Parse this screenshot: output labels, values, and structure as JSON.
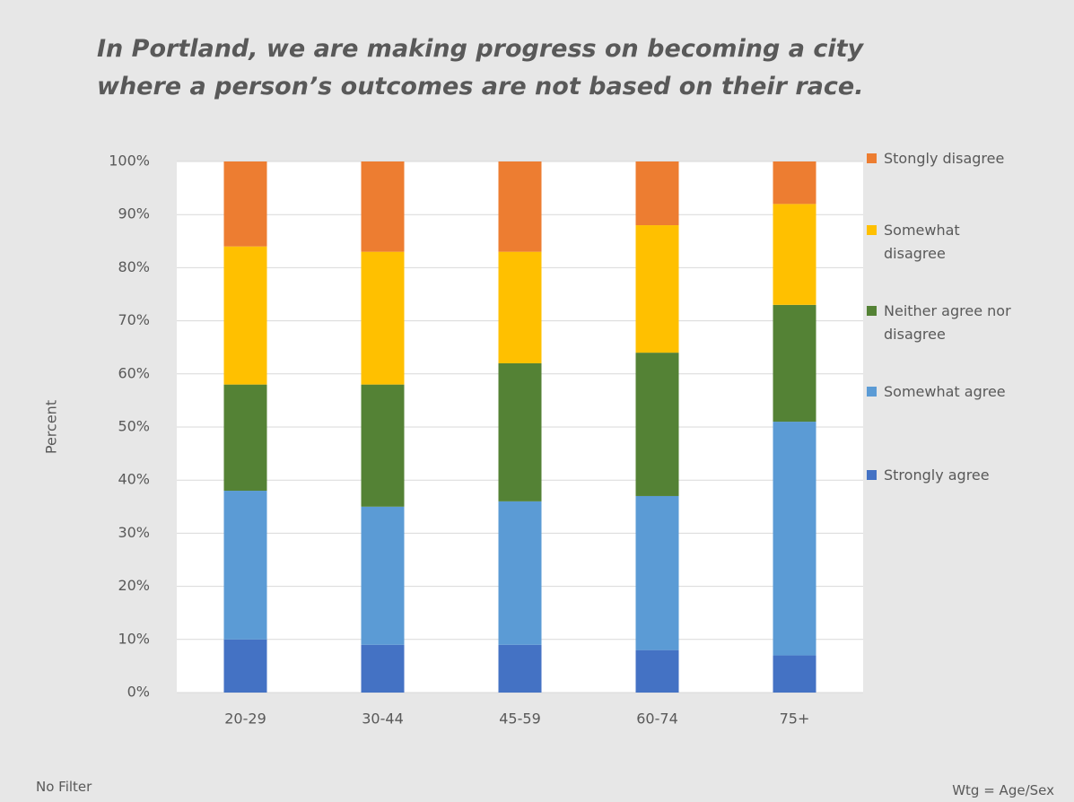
{
  "chart_data": {
    "type": "stacked_bar",
    "title": "In Portland, we are making progress on becoming a city where a person’s outcomes are not based on their race.",
    "y_label": "Percent",
    "categories": [
      "20-29",
      "30-44",
      "45-59",
      "60-74",
      "75+"
    ],
    "series": [
      {
        "name": "Strongly agree",
        "color": "#4472c4",
        "values": [
          10,
          9,
          9,
          8,
          7
        ]
      },
      {
        "name": "Somewhat agree",
        "color": "#5b9bd5",
        "values": [
          28,
          26,
          27,
          29,
          44
        ]
      },
      {
        "name": "Neither agree nor disagree",
        "color": "#548235",
        "values": [
          20,
          23,
          26,
          27,
          22
        ]
      },
      {
        "name": "Somewhat disagree",
        "color": "#ffc000",
        "values": [
          26,
          25,
          21,
          24,
          19
        ]
      },
      {
        "name": "Stongly disagree",
        "color": "#ed7d31",
        "values": [
          16,
          17,
          17,
          12,
          8
        ]
      }
    ],
    "ylim": [
      0,
      100
    ],
    "yticks": [
      {
        "value": 0,
        "label": "0%"
      },
      {
        "value": 10,
        "label": "10%"
      },
      {
        "value": 20,
        "label": "20%"
      },
      {
        "value": 30,
        "label": "30%"
      },
      {
        "value": 40,
        "label": "40%"
      },
      {
        "value": 50,
        "label": "50%"
      },
      {
        "value": 60,
        "label": "60%"
      },
      {
        "value": 70,
        "label": "70%"
      },
      {
        "value": 80,
        "label": "80%"
      },
      {
        "value": 90,
        "label": "90%"
      },
      {
        "value": 100,
        "label": "100%"
      }
    ],
    "grid": true,
    "legend": "right",
    "footnote_left": "No Filter",
    "footnote_right": "Wtg = Age/Sex"
  }
}
